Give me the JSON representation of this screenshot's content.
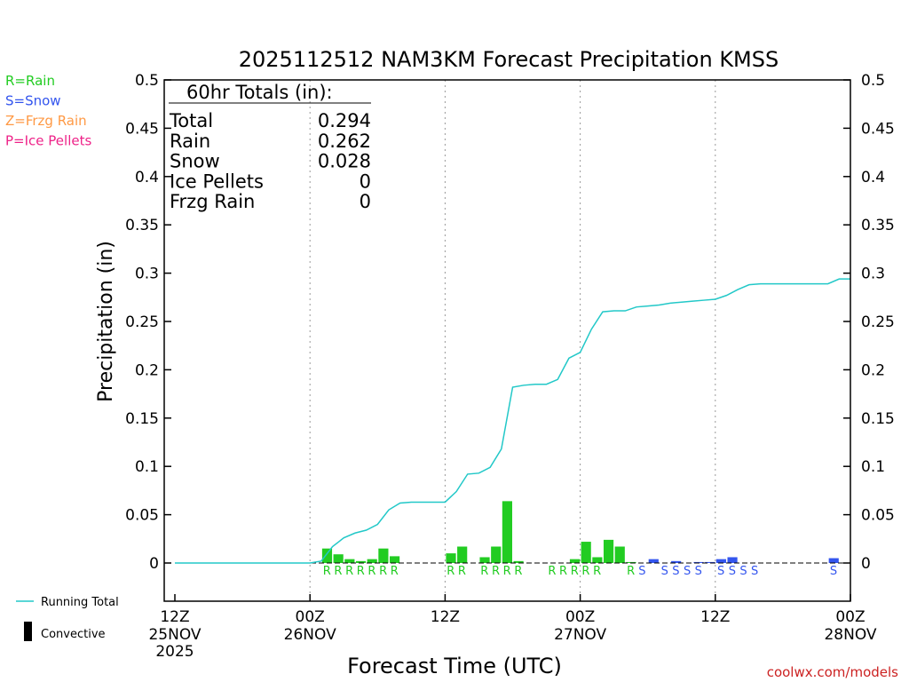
{
  "chart_data": {
    "type": "bar",
    "title": "2025112512 NAM3KM Forecast Precipitation KMSS",
    "xlabel": "Forecast Time (UTC)",
    "ylabel": "Precipitation (in)",
    "ylim": [
      -0.04,
      0.5
    ],
    "yticks": [
      "0",
      "0.05",
      "0.1",
      "0.15",
      "0.2",
      "0.25",
      "0.3",
      "0.35",
      "0.4",
      "0.45",
      "0.5"
    ],
    "ytick_values": [
      0,
      0.05,
      0.1,
      0.15,
      0.2,
      0.25,
      0.3,
      0.35,
      0.4,
      0.45,
      0.5
    ],
    "xlim_hours": [
      0,
      60
    ],
    "x_ticks": [
      {
        "hour": 0,
        "line1": "12Z",
        "line2": "25NOV",
        "line3": "2025"
      },
      {
        "hour": 12,
        "line1": "00Z",
        "line2": "26NOV",
        "line3": ""
      },
      {
        "hour": 24,
        "line1": "12Z",
        "line2": "",
        "line3": ""
      },
      {
        "hour": 36,
        "line1": "00Z",
        "line2": "27NOV",
        "line3": ""
      },
      {
        "hour": 48,
        "line1": "12Z",
        "line2": "",
        "line3": ""
      },
      {
        "hour": 60,
        "line1": "00Z",
        "line2": "28NOV",
        "line3": ""
      }
    ],
    "type_legend": [
      {
        "label": "R=Rain",
        "color": "#22cc22"
      },
      {
        "label": "S=Snow",
        "color": "#3355ee"
      },
      {
        "label": "Z=Frzg Rain",
        "color": "#ff9944"
      },
      {
        "label": "P=Ice Pellets",
        "color": "#ee2288"
      }
    ],
    "series_legend": [
      {
        "label": "Running Total",
        "color": "#22c8c8"
      },
      {
        "label": "Convective",
        "color": "#000000"
      }
    ],
    "totals": {
      "heading": "60hr Totals (in):",
      "rows": [
        {
          "label": "Total",
          "value": "0.294"
        },
        {
          "label": "Rain",
          "value": "0.262"
        },
        {
          "label": "Snow",
          "value": "0.028"
        },
        {
          "label": "Ice Pellets",
          "value": "0"
        },
        {
          "label": "Frzg Rain",
          "value": "0"
        }
      ]
    },
    "series": [
      {
        "name": "Hourly precipitation",
        "hours": [
          14,
          15,
          16,
          17,
          18,
          19,
          20,
          25,
          26,
          28,
          29,
          30,
          31,
          36,
          37,
          38,
          39,
          40,
          41,
          43,
          45,
          47,
          48,
          49,
          50,
          59
        ],
        "values": [
          0.015,
          0.009,
          0.004,
          0.002,
          0.004,
          0.015,
          0.007,
          0.01,
          0.017,
          0.006,
          0.017,
          0.064,
          0.002,
          0.004,
          0.022,
          0.006,
          0.024,
          0.017,
          0.001,
          0.004,
          0.002,
          0.001,
          0.001,
          0.004,
          0.006,
          0.005
        ],
        "ptype": [
          "R",
          "R",
          "R",
          "R",
          "R",
          "R",
          "R",
          "R",
          "R",
          "R",
          "R",
          "R",
          "R",
          "R",
          "R",
          "R",
          "R",
          "R",
          "R",
          "S",
          "S",
          "S",
          "S",
          "S",
          "S",
          "S"
        ]
      },
      {
        "name": "Running Total",
        "hours": [
          0,
          12,
          13,
          14,
          15,
          16,
          17,
          18,
          19,
          20,
          21,
          22,
          23,
          24,
          25,
          26,
          27,
          28,
          29,
          30,
          31,
          32,
          33,
          34,
          35,
          36,
          37,
          38,
          39,
          40,
          41,
          42,
          43,
          44,
          45,
          46,
          47,
          48,
          49,
          50,
          51,
          52,
          53,
          54,
          55,
          56,
          57,
          58,
          59,
          60
        ],
        "values": [
          0.0,
          0.0,
          0.002,
          0.017,
          0.026,
          0.031,
          0.034,
          0.04,
          0.055,
          0.062,
          0.063,
          0.063,
          0.063,
          0.063,
          0.074,
          0.092,
          0.093,
          0.099,
          0.118,
          0.182,
          0.184,
          0.185,
          0.185,
          0.19,
          0.212,
          0.218,
          0.242,
          0.26,
          0.261,
          0.261,
          0.265,
          0.266,
          0.267,
          0.269,
          0.27,
          0.271,
          0.272,
          0.273,
          0.277,
          0.283,
          0.288,
          0.289,
          0.289,
          0.289,
          0.289,
          0.289,
          0.289,
          0.289,
          0.294,
          0.294
        ]
      }
    ],
    "ptype_letters": [
      {
        "hour": 14,
        "letter": "R"
      },
      {
        "hour": 15,
        "letter": "R"
      },
      {
        "hour": 16,
        "letter": "R"
      },
      {
        "hour": 17,
        "letter": "R"
      },
      {
        "hour": 18,
        "letter": "R"
      },
      {
        "hour": 19,
        "letter": "R"
      },
      {
        "hour": 20,
        "letter": "R"
      },
      {
        "hour": 25,
        "letter": "R"
      },
      {
        "hour": 26,
        "letter": "R"
      },
      {
        "hour": 28,
        "letter": "R"
      },
      {
        "hour": 29,
        "letter": "R"
      },
      {
        "hour": 30,
        "letter": "R"
      },
      {
        "hour": 31,
        "letter": "R"
      },
      {
        "hour": 34,
        "letter": "R"
      },
      {
        "hour": 35,
        "letter": "R"
      },
      {
        "hour": 36,
        "letter": "R"
      },
      {
        "hour": 37,
        "letter": "R"
      },
      {
        "hour": 38,
        "letter": "R"
      },
      {
        "hour": 41,
        "letter": "R"
      },
      {
        "hour": 42,
        "letter": "S"
      },
      {
        "hour": 44,
        "letter": "S"
      },
      {
        "hour": 45,
        "letter": "S"
      },
      {
        "hour": 46,
        "letter": "S"
      },
      {
        "hour": 47,
        "letter": "S"
      },
      {
        "hour": 49,
        "letter": "S"
      },
      {
        "hour": 50,
        "letter": "S"
      },
      {
        "hour": 51,
        "letter": "S"
      },
      {
        "hour": 52,
        "letter": "S"
      },
      {
        "hour": 59,
        "letter": "S"
      }
    ],
    "colors": {
      "rain": "#22cc22",
      "snow": "#3355ee",
      "running_total": "#22c8c8",
      "grid": "#999999"
    },
    "credit": "coolwx.com/models"
  }
}
